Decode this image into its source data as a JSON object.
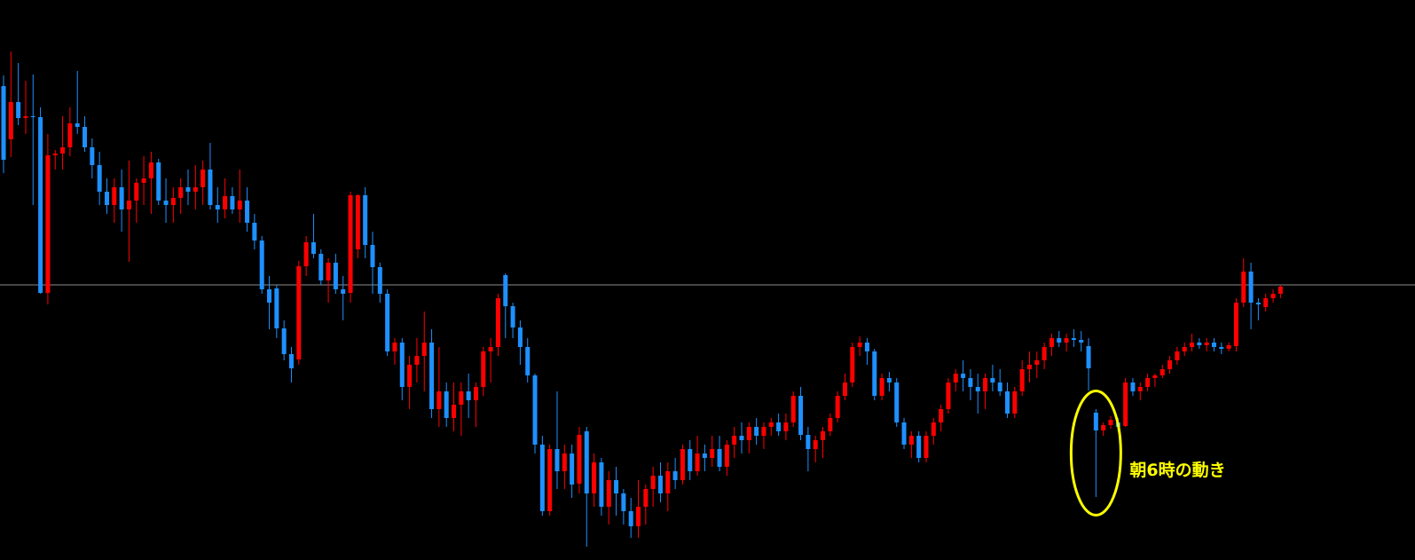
{
  "chart_data": {
    "type": "candlestick",
    "up_color": "#ff0000",
    "down_color": "#1e90ff",
    "line_color": "#8c8c8c",
    "annotation_color": "#ffff00",
    "ylim": [
      0,
      631
    ],
    "hline": 310,
    "annotation": {
      "text": "朝6時の動き",
      "index": 148
    },
    "ohlc": [
      [
        534,
        546,
        436,
        451
      ],
      [
        474,
        573,
        454,
        516
      ],
      [
        516,
        560,
        490,
        498
      ],
      [
        498,
        540,
        480,
        500
      ],
      [
        500,
        547,
        400,
        499
      ],
      [
        499,
        510,
        300,
        301
      ],
      [
        301,
        480,
        288,
        456
      ],
      [
        456,
        462,
        440,
        458
      ],
      [
        458,
        500,
        440,
        465
      ],
      [
        465,
        510,
        455,
        492
      ],
      [
        492,
        551,
        480,
        488
      ],
      [
        488,
        500,
        460,
        465
      ],
      [
        465,
        475,
        430,
        445
      ],
      [
        445,
        460,
        400,
        415
      ],
      [
        415,
        430,
        390,
        400
      ],
      [
        400,
        430,
        380,
        420
      ],
      [
        420,
        440,
        370,
        395
      ],
      [
        395,
        450,
        336,
        405
      ],
      [
        405,
        430,
        380,
        425
      ],
      [
        425,
        455,
        400,
        430
      ],
      [
        430,
        460,
        390,
        448
      ],
      [
        448,
        452,
        400,
        405
      ],
      [
        405,
        430,
        380,
        400
      ],
      [
        400,
        420,
        380,
        408
      ],
      [
        408,
        430,
        390,
        420
      ],
      [
        420,
        440,
        400,
        415
      ],
      [
        415,
        445,
        395,
        420
      ],
      [
        420,
        450,
        400,
        440
      ],
      [
        440,
        470,
        395,
        400
      ],
      [
        400,
        420,
        380,
        395
      ],
      [
        395,
        430,
        385,
        410
      ],
      [
        410,
        420,
        390,
        395
      ],
      [
        395,
        440,
        380,
        405
      ],
      [
        405,
        420,
        370,
        380
      ],
      [
        380,
        390,
        350,
        360
      ],
      [
        360,
        365,
        300,
        305
      ],
      [
        305,
        320,
        260,
        290
      ],
      [
        306,
        310,
        250,
        261
      ],
      [
        261,
        270,
        225,
        232
      ],
      [
        232,
        240,
        200,
        216
      ],
      [
        226,
        337,
        220,
        331
      ],
      [
        331,
        365,
        320,
        358
      ],
      [
        358,
        390,
        340,
        345
      ],
      [
        345,
        350,
        310,
        315
      ],
      [
        315,
        340,
        290,
        335
      ],
      [
        335,
        345,
        300,
        305
      ],
      [
        305,
        320,
        270,
        300
      ],
      [
        301,
        415,
        290,
        411
      ],
      [
        350,
        412,
        340,
        411
      ],
      [
        411,
        420,
        340,
        355
      ],
      [
        355,
        370,
        300,
        330
      ],
      [
        330,
        335,
        290,
        300
      ],
      [
        300,
        305,
        230,
        235
      ],
      [
        235,
        250,
        220,
        245
      ],
      [
        245,
        250,
        180,
        195
      ],
      [
        195,
        230,
        170,
        220
      ],
      [
        220,
        250,
        200,
        230
      ],
      [
        230,
        280,
        190,
        245
      ],
      [
        245,
        260,
        160,
        170
      ],
      [
        170,
        240,
        150,
        190
      ],
      [
        190,
        200,
        150,
        160
      ],
      [
        160,
        200,
        145,
        175
      ],
      [
        175,
        200,
        140,
        190
      ],
      [
        190,
        210,
        160,
        180
      ],
      [
        180,
        200,
        150,
        195
      ],
      [
        195,
        240,
        185,
        235
      ],
      [
        235,
        250,
        200,
        240
      ],
      [
        240,
        300,
        230,
        295
      ],
      [
        321,
        323,
        250,
        286
      ],
      [
        286,
        290,
        250,
        262
      ],
      [
        262,
        270,
        220,
        240
      ],
      [
        240,
        250,
        200,
        208
      ],
      [
        208,
        210,
        120,
        130
      ],
      [
        130,
        140,
        50,
        55
      ],
      [
        55,
        130,
        50,
        125
      ],
      [
        125,
        190,
        80,
        100
      ],
      [
        100,
        130,
        80,
        120
      ],
      [
        120,
        130,
        70,
        85
      ],
      [
        86,
        150,
        75,
        141
      ],
      [
        145,
        150,
        15,
        75
      ],
      [
        75,
        120,
        60,
        110
      ],
      [
        110,
        115,
        50,
        60
      ],
      [
        60,
        100,
        40,
        90
      ],
      [
        90,
        105,
        50,
        75
      ],
      [
        75,
        80,
        40,
        55
      ],
      [
        55,
        70,
        25,
        38
      ],
      [
        38,
        90,
        25,
        60
      ],
      [
        60,
        85,
        40,
        80
      ],
      [
        80,
        105,
        60,
        95
      ],
      [
        95,
        110,
        65,
        75
      ],
      [
        75,
        110,
        55,
        100
      ],
      [
        100,
        115,
        80,
        90
      ],
      [
        90,
        130,
        85,
        125
      ],
      [
        125,
        135,
        90,
        100
      ],
      [
        100,
        140,
        95,
        120
      ],
      [
        120,
        130,
        100,
        115
      ],
      [
        115,
        140,
        105,
        125
      ],
      [
        125,
        140,
        100,
        105
      ],
      [
        105,
        135,
        95,
        130
      ],
      [
        130,
        150,
        115,
        140
      ],
      [
        140,
        155,
        120,
        135
      ],
      [
        135,
        155,
        120,
        150
      ],
      [
        150,
        160,
        130,
        140
      ],
      [
        140,
        155,
        125,
        150
      ],
      [
        150,
        160,
        140,
        155
      ],
      [
        155,
        165,
        140,
        145
      ],
      [
        145,
        165,
        135,
        155
      ],
      [
        155,
        190,
        150,
        185
      ],
      [
        185,
        195,
        135,
        141
      ],
      [
        141,
        150,
        100,
        125
      ],
      [
        125,
        140,
        110,
        135
      ],
      [
        135,
        150,
        115,
        145
      ],
      [
        145,
        165,
        140,
        160
      ],
      [
        160,
        190,
        155,
        185
      ],
      [
        185,
        210,
        180,
        200
      ],
      [
        200,
        245,
        195,
        240
      ],
      [
        240,
        252,
        230,
        245
      ],
      [
        245,
        250,
        220,
        235
      ],
      [
        235,
        238,
        180,
        185
      ],
      [
        185,
        210,
        180,
        205
      ],
      [
        205,
        212,
        190,
        200
      ],
      [
        200,
        205,
        150,
        155
      ],
      [
        155,
        160,
        125,
        130
      ],
      [
        130,
        145,
        115,
        140
      ],
      [
        140,
        145,
        110,
        115
      ],
      [
        115,
        145,
        110,
        140
      ],
      [
        140,
        160,
        130,
        155
      ],
      [
        155,
        175,
        145,
        170
      ],
      [
        170,
        205,
        165,
        200
      ],
      [
        200,
        215,
        190,
        210
      ],
      [
        210,
        225,
        190,
        205
      ],
      [
        205,
        215,
        180,
        195
      ],
      [
        195,
        210,
        165,
        190
      ],
      [
        190,
        210,
        170,
        205
      ],
      [
        205,
        220,
        190,
        200
      ],
      [
        200,
        215,
        185,
        190
      ],
      [
        190,
        200,
        160,
        165
      ],
      [
        165,
        195,
        160,
        190
      ],
      [
        190,
        225,
        185,
        215
      ],
      [
        215,
        235,
        200,
        220
      ],
      [
        220,
        235,
        205,
        225
      ],
      [
        225,
        245,
        215,
        240
      ],
      [
        240,
        255,
        230,
        250
      ],
      [
        250,
        258,
        240,
        245
      ],
      [
        245,
        255,
        235,
        250
      ],
      [
        250,
        260,
        240,
        248
      ],
      [
        248,
        258,
        235,
        245
      ],
      [
        241,
        250,
        191,
        216
      ],
      [
        166,
        170,
        71,
        146
      ],
      [
        146,
        155,
        140,
        152
      ],
      [
        152,
        162,
        148,
        158
      ],
      [
        155,
        160,
        145,
        150
      ],
      [
        151,
        205,
        150,
        200
      ],
      [
        200,
        205,
        185,
        190
      ],
      [
        190,
        200,
        180,
        195
      ],
      [
        195,
        210,
        190,
        205
      ],
      [
        205,
        210,
        195,
        208
      ],
      [
        208,
        220,
        205,
        215
      ],
      [
        215,
        230,
        210,
        225
      ],
      [
        225,
        240,
        220,
        235
      ],
      [
        235,
        245,
        230,
        240
      ],
      [
        240,
        255,
        235,
        245
      ],
      [
        245,
        250,
        238,
        242
      ],
      [
        242,
        250,
        235,
        245
      ],
      [
        245,
        250,
        235,
        240
      ],
      [
        240,
        245,
        232,
        238
      ],
      [
        238,
        245,
        235,
        242
      ],
      [
        241,
        295,
        235,
        290
      ],
      [
        290,
        340,
        285,
        325
      ],
      [
        325,
        335,
        260,
        290
      ],
      [
        290,
        295,
        270,
        288
      ],
      [
        285,
        300,
        280,
        295
      ],
      [
        295,
        305,
        290,
        300
      ],
      [
        300,
        310,
        295,
        308
      ]
    ]
  }
}
